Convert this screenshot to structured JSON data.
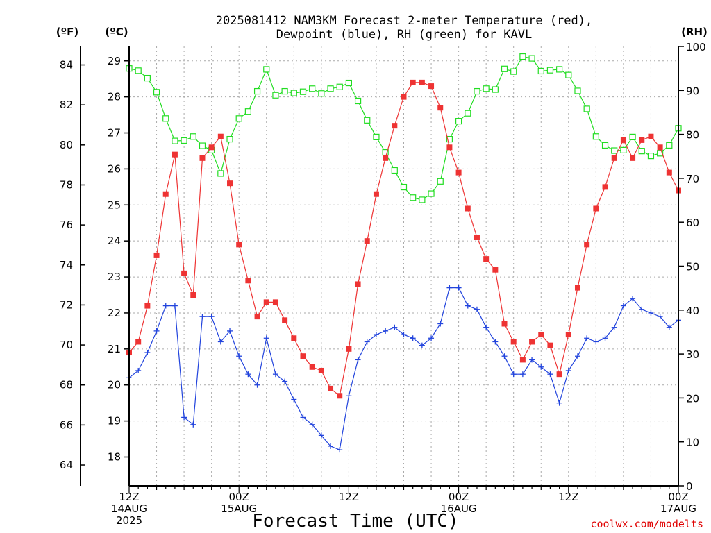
{
  "title_line1": "2025081412 NAM3KM Forecast 2-meter Temperature (red),",
  "title_line2": "Dewpoint (blue), RH (green) for KAVL",
  "unit_f": "(ºF)",
  "unit_c": "(ºC)",
  "unit_rh": "(RH)",
  "xlabel": "Forecast Time (UTC)",
  "credit": "coolwx.com/modelts",
  "colors": {
    "temperature": "#ee3333",
    "dewpoint": "#2244dd",
    "rh": "#22dd22",
    "grid": "#aaaaaa"
  },
  "chart_data": {
    "type": "line",
    "x_unit": "hours after 2025-08-14 12Z",
    "x_ticks": [
      {
        "hour": 0,
        "lines": [
          "12Z",
          "14AUG",
          "2025"
        ]
      },
      {
        "hour": 12,
        "lines": [
          "00Z",
          "15AUG"
        ]
      },
      {
        "hour": 24,
        "lines": [
          "12Z"
        ]
      },
      {
        "hour": 36,
        "lines": [
          "00Z",
          "16AUG"
        ]
      },
      {
        "hour": 48,
        "lines": [
          "12Z"
        ]
      },
      {
        "hour": 60,
        "lines": [
          "00Z",
          "17AUG"
        ]
      }
    ],
    "xlim": [
      0,
      60
    ],
    "y_celsius": {
      "ticks": [
        18,
        19,
        20,
        21,
        22,
        23,
        24,
        25,
        26,
        27,
        28,
        29
      ],
      "range": [
        17.2,
        29.4
      ]
    },
    "y_fahrenheit": {
      "ticks": [
        "64",
        "66",
        "68",
        "70",
        "72",
        "74",
        "76",
        "78",
        "80",
        "82",
        "84"
      ],
      "values": [
        64,
        66,
        68,
        70,
        72,
        74,
        76,
        78,
        80,
        82,
        84
      ]
    },
    "y_rh": {
      "ticks": [
        "0",
        "10",
        "20",
        "30",
        "40",
        "50",
        "60",
        "70",
        "80",
        "90",
        "100"
      ],
      "values": [
        0,
        10,
        20,
        30,
        40,
        50,
        60,
        70,
        80,
        90,
        100
      ],
      "range": [
        0,
        100
      ]
    },
    "grid": true,
    "series": [
      {
        "name": "2-meter Temperature",
        "unit": "°C",
        "marker": "filled-square",
        "x": [
          0,
          1,
          2,
          3,
          4,
          5,
          6,
          7,
          8,
          9,
          10,
          11,
          12,
          13,
          14,
          15,
          16,
          17,
          18,
          19,
          20,
          21,
          22,
          23,
          24,
          25,
          26,
          27,
          28,
          29,
          30,
          31,
          32,
          33,
          34,
          35,
          36,
          37,
          38,
          39,
          40,
          41,
          42,
          43,
          44,
          45,
          46,
          47,
          48,
          49,
          50,
          51,
          52,
          53,
          54,
          55,
          56,
          57,
          58,
          59,
          60
        ],
        "values": [
          20.9,
          21.2,
          22.2,
          23.6,
          25.3,
          26.4,
          23.1,
          22.5,
          26.3,
          26.6,
          26.9,
          25.6,
          23.9,
          22.9,
          21.9,
          22.3,
          22.3,
          21.8,
          21.3,
          20.8,
          20.5,
          20.4,
          19.9,
          19.7,
          21.0,
          22.8,
          24.0,
          25.3,
          26.3,
          27.2,
          28.0,
          28.4,
          28.4,
          28.3,
          27.7,
          26.6,
          25.9,
          24.9,
          24.1,
          23.5,
          23.2,
          21.7,
          21.2,
          20.7,
          21.2,
          21.4,
          21.1,
          20.3,
          21.4,
          22.7,
          23.9,
          24.9,
          25.5,
          26.3,
          26.8,
          26.3,
          26.8,
          26.9,
          26.6,
          25.9,
          25.4
        ]
      },
      {
        "name": "Dewpoint",
        "unit": "°C",
        "marker": "plus",
        "x": [
          0,
          1,
          2,
          3,
          4,
          5,
          6,
          7,
          8,
          9,
          10,
          11,
          12,
          13,
          14,
          15,
          16,
          17,
          18,
          19,
          20,
          21,
          22,
          23,
          24,
          25,
          26,
          27,
          28,
          29,
          30,
          31,
          32,
          33,
          34,
          35,
          36,
          37,
          38,
          39,
          40,
          41,
          42,
          43,
          44,
          45,
          46,
          47,
          48,
          49,
          50,
          51,
          52,
          53,
          54,
          55,
          56,
          57,
          58,
          59,
          60
        ],
        "values": [
          20.2,
          20.4,
          20.9,
          21.5,
          22.2,
          22.2,
          19.1,
          18.9,
          21.9,
          21.9,
          21.2,
          21.5,
          20.8,
          20.3,
          20.0,
          21.3,
          20.3,
          20.1,
          19.6,
          19.1,
          18.9,
          18.6,
          18.3,
          18.2,
          19.7,
          20.7,
          21.2,
          21.4,
          21.5,
          21.6,
          21.4,
          21.3,
          21.1,
          21.3,
          21.7,
          22.7,
          22.7,
          22.2,
          22.1,
          21.6,
          21.2,
          20.8,
          20.3,
          20.3,
          20.7,
          20.5,
          20.3,
          19.5,
          20.4,
          20.8,
          21.3,
          21.2,
          21.3,
          21.6,
          22.2,
          22.4,
          22.1,
          22.0,
          21.9,
          21.6,
          21.8
        ]
      },
      {
        "name": "RH",
        "unit": "%",
        "marker": "open-square",
        "x": [
          0,
          1,
          2,
          3,
          4,
          5,
          6,
          7,
          8,
          9,
          10,
          11,
          12,
          13,
          14,
          15,
          16,
          17,
          18,
          19,
          20,
          21,
          22,
          23,
          24,
          25,
          26,
          27,
          28,
          29,
          30,
          31,
          32,
          33,
          34,
          35,
          36,
          37,
          38,
          39,
          40,
          41,
          42,
          43,
          44,
          45,
          46,
          47,
          48,
          49,
          50,
          51,
          52,
          53,
          54,
          55,
          56,
          57,
          58,
          59,
          60
        ],
        "values": [
          95,
          94.5,
          92.8,
          89.6,
          83.6,
          78.5,
          78.6,
          79.5,
          77.4,
          76.4,
          71.1,
          78.9,
          83.6,
          85.2,
          89.8,
          94.8,
          88.9,
          89.8,
          89.4,
          89.7,
          90.4,
          89.3,
          90.4,
          90.8,
          91.7,
          87.6,
          83.2,
          79.4,
          75.9,
          71.8,
          68,
          65.6,
          65.1,
          66.5,
          69.3,
          78.9,
          83,
          84.8,
          89.8,
          90.4,
          90.2,
          94.9,
          94.3,
          97.7,
          97.3,
          94.4,
          94.6,
          94.8,
          93.5,
          89.9,
          85.8,
          79.5,
          77.5,
          76.3,
          76.4,
          79.4,
          76.2,
          75.1,
          75.7,
          77.5,
          81.4
        ]
      }
    ]
  }
}
